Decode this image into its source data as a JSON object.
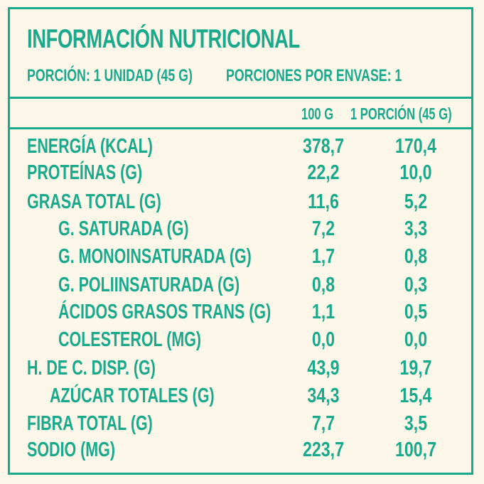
{
  "title": "INFORMACIÓN NUTRICIONAL",
  "serving": {
    "portion": "PORCIÓN: 1 UNIDAD (45 G)",
    "per_package": "PORCIONES POR ENVASE: 1"
  },
  "columns": {
    "per_100g": "100 G",
    "per_portion": "1 PORCIÓN (45 G)"
  },
  "rows": [
    {
      "label": "ENERGÍA (KCAL)",
      "v100": "378,7",
      "vpor": "170,4"
    },
    {
      "label": "PROTEÍNAS (G)",
      "v100": "22,2",
      "vpor": "10,0"
    },
    {
      "label": "GRASA TOTAL (G)",
      "v100": "11,6",
      "vpor": "5,2"
    },
    {
      "label": "G. SATURADA (G)",
      "v100": "7,2",
      "vpor": "3,3"
    },
    {
      "label": "G. MONOINSATURADA (G)",
      "v100": "1,7",
      "vpor": "0,8"
    },
    {
      "label": "G. POLIINSATURADA (G)",
      "v100": "0,8",
      "vpor": "0,3"
    },
    {
      "label": "ÁCIDOS GRASOS TRANS (G)",
      "v100": "1,1",
      "vpor": "0,5"
    },
    {
      "label": "COLESTEROL (MG)",
      "v100": "0,0",
      "vpor": "0,0"
    },
    {
      "label": "H. DE C. DISP. (G)",
      "v100": "43,9",
      "vpor": "19,7"
    },
    {
      "label": "AZÚCAR TOTALES (G)",
      "v100": "34,3",
      "vpor": "15,4"
    },
    {
      "label": "FIBRA TOTAL (G)",
      "v100": "7,7",
      "vpor": "3,5"
    },
    {
      "label": "SODIO (MG)",
      "v100": "223,7",
      "vpor": "100,7"
    }
  ],
  "colors": {
    "accent": "#1aa98b",
    "background": "#fdf7ea"
  }
}
